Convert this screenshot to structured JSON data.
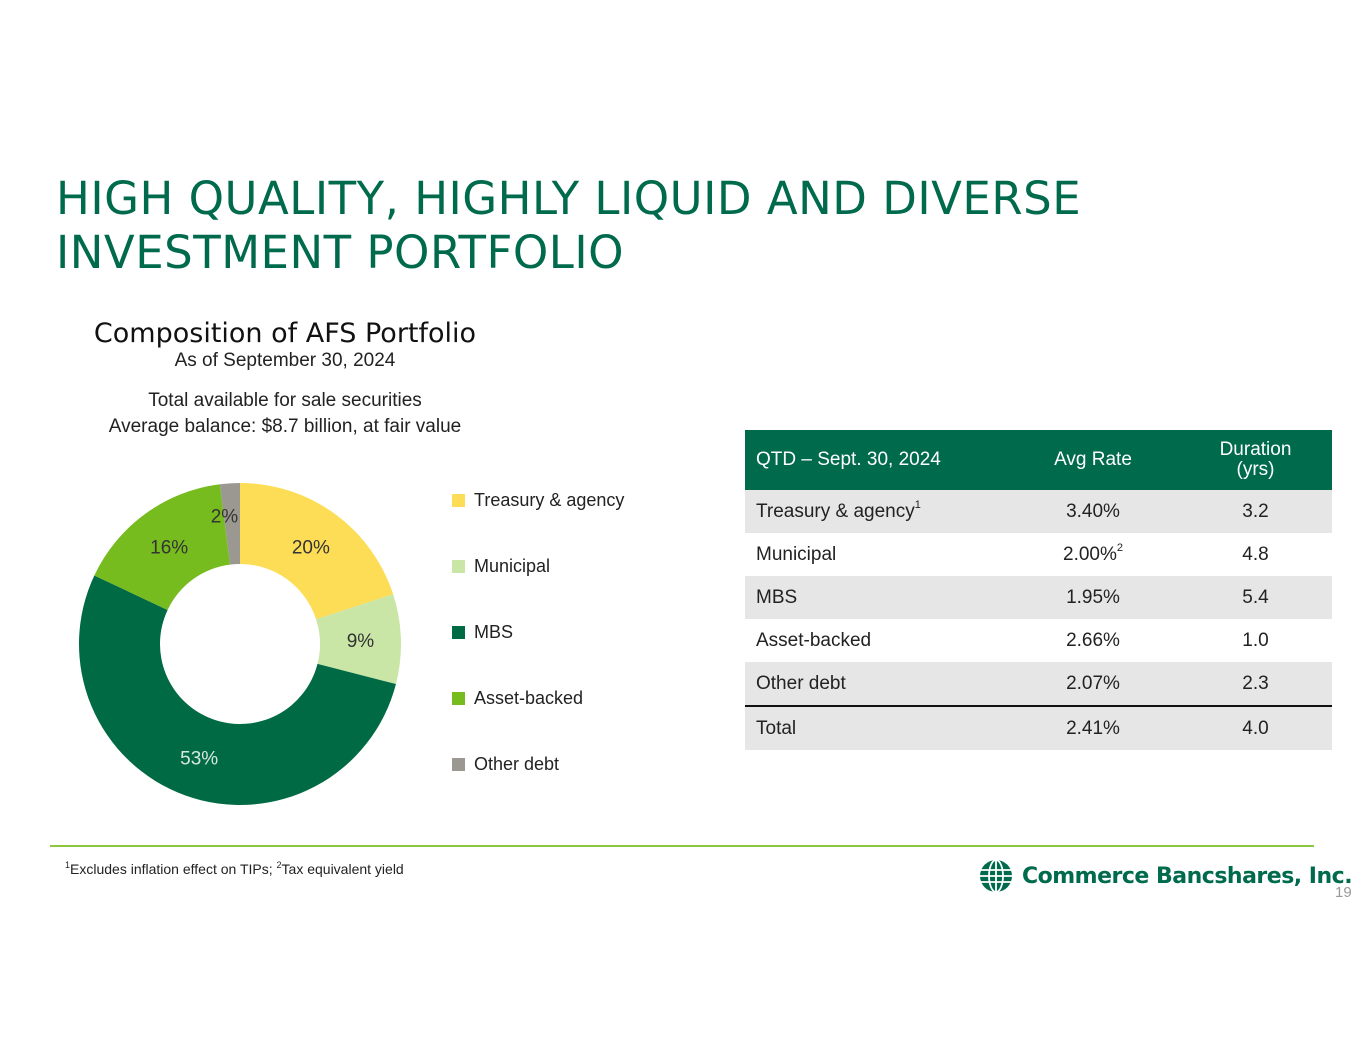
{
  "slide": {
    "title_line1": "HIGH QUALITY, HIGHLY LIQUID AND DIVERSE",
    "title_line2": "INVESTMENT PORTFOLIO",
    "page_number": "19"
  },
  "chart_data": {
    "type": "pie",
    "title": "Composition of AFS Portfolio",
    "subtitle": "As of September 30, 2024",
    "note_line1": "Total available for sale securities",
    "note_line2": "Average balance: $8.7 billion, at fair value",
    "categories": [
      "Treasury & agency",
      "Municipal",
      "MBS",
      "Asset-backed",
      "Other debt"
    ],
    "values": [
      20,
      9,
      53,
      16,
      2
    ],
    "labels": [
      "20%",
      "9%",
      "53%",
      "16%",
      "2%"
    ],
    "colors": [
      "#fddd55",
      "#c9e6a6",
      "#006a44",
      "#77bc1f",
      "#9b9892"
    ],
    "label_colors": [
      "#333333",
      "#333333",
      "#d9e8df",
      "#333333",
      "#333333"
    ],
    "legend_position": "right"
  },
  "table": {
    "headers": [
      "QTD – Sept. 30, 2024",
      "Avg Rate",
      "Duration",
      "(yrs)"
    ],
    "rows": [
      {
        "name": "Treasury & agency",
        "name_sup": "1",
        "rate": "3.40%",
        "rate_sup": "",
        "duration": "3.2"
      },
      {
        "name": "Municipal",
        "name_sup": "",
        "rate": "2.00%",
        "rate_sup": "2",
        "duration": "4.8"
      },
      {
        "name": "MBS",
        "name_sup": "",
        "rate": "1.95%",
        "rate_sup": "",
        "duration": "5.4"
      },
      {
        "name": "Asset-backed",
        "name_sup": "",
        "rate": "2.66%",
        "rate_sup": "",
        "duration": "1.0"
      },
      {
        "name": "Other debt",
        "name_sup": "",
        "rate": "2.07%",
        "rate_sup": "",
        "duration": "2.3"
      },
      {
        "name": "Total",
        "name_sup": "",
        "rate": "2.41%",
        "rate_sup": "",
        "duration": "4.0"
      }
    ]
  },
  "footnote": {
    "sup1": "1",
    "text1": "Excludes inflation effect on TIPs; ",
    "sup2": "2",
    "text2": "Tax equivalent yield"
  },
  "logo": {
    "text": "Commerce Bancshares, Inc.",
    "icon": "globe-icon",
    "color": "#006a4d"
  }
}
